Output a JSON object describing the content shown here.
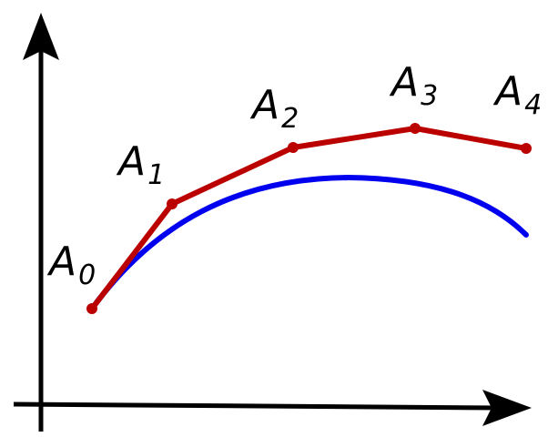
{
  "colors": {
    "axes": "#000000",
    "control_polygon": "#bb0000",
    "curve": "#0000ee"
  },
  "control_points": [
    {
      "letter": "A",
      "index": "0"
    },
    {
      "letter": "A",
      "index": "1"
    },
    {
      "letter": "A",
      "index": "2"
    },
    {
      "letter": "A",
      "index": "3"
    },
    {
      "letter": "A",
      "index": "4"
    }
  ]
}
